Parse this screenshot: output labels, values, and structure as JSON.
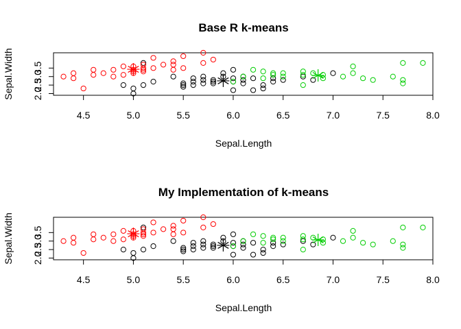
{
  "colors": {
    "cluster1": "#000000",
    "cluster2": "#ff0000",
    "cluster3": "#00cd00"
  },
  "chart_data": [
    {
      "type": "scatter",
      "title": "Base R k-means",
      "xlabel": "Sepal.Length",
      "ylabel": "Sepal.Width",
      "xlim": [
        4.2,
        8.0
      ],
      "ylim": [
        1.9,
        4.4
      ],
      "xticks": [
        "4.5",
        "5.0",
        "5.5",
        "6.0",
        "6.5",
        "7.0",
        "7.5",
        "8.0"
      ],
      "yticks": [
        "2.0",
        "2.5",
        "3.0",
        "3.5"
      ],
      "grid": false,
      "series": [
        {
          "color": "#000000",
          "x": [
            4.9,
            5.0,
            5.1,
            5.2,
            5.4,
            5.5,
            5.5,
            5.5,
            5.6,
            5.6,
            5.6,
            5.7,
            5.7,
            5.7,
            5.8,
            5.8,
            5.8,
            5.9,
            5.9,
            6.0,
            6.0,
            6.0,
            6.0,
            6.1,
            6.1,
            6.2,
            6.2,
            6.3,
            6.3,
            6.4,
            6.4,
            6.5,
            6.7,
            6.8,
            7.0,
            5.0,
            5.1,
            6.1
          ],
          "y": [
            2.5,
            2.0,
            2.5,
            2.7,
            3.0,
            2.4,
            2.5,
            2.6,
            2.5,
            2.7,
            2.9,
            2.6,
            2.8,
            3.0,
            2.6,
            2.7,
            2.8,
            3.0,
            3.2,
            2.2,
            2.7,
            2.9,
            3.4,
            2.8,
            3.0,
            2.2,
            2.9,
            2.3,
            2.5,
            2.7,
            2.9,
            2.8,
            3.0,
            2.8,
            3.2,
            2.3,
            3.8,
            2.6
          ]
        },
        {
          "color": "#ff0000",
          "x": [
            4.3,
            4.4,
            4.4,
            4.5,
            4.6,
            4.6,
            4.7,
            4.8,
            4.8,
            4.9,
            4.9,
            5.0,
            5.0,
            5.0,
            5.1,
            5.1,
            5.1,
            5.2,
            5.2,
            5.3,
            5.4,
            5.4,
            5.4,
            5.5,
            5.5,
            5.7,
            5.7,
            5.8,
            5.0,
            5.1
          ],
          "y": [
            3.0,
            2.9,
            3.2,
            2.3,
            3.1,
            3.4,
            3.2,
            3.0,
            3.4,
            3.1,
            3.6,
            3.2,
            3.4,
            3.6,
            3.3,
            3.5,
            3.7,
            3.5,
            4.1,
            3.7,
            3.4,
            3.7,
            3.9,
            3.5,
            4.2,
            3.8,
            4.4,
            4.0,
            3.3,
            3.4
          ]
        },
        {
          "color": "#00cd00",
          "x": [
            6.0,
            6.1,
            6.2,
            6.3,
            6.3,
            6.4,
            6.4,
            6.5,
            6.5,
            6.7,
            6.7,
            6.7,
            6.8,
            6.9,
            6.9,
            7.1,
            7.2,
            7.2,
            7.3,
            7.4,
            7.6,
            7.7,
            7.7,
            7.7,
            7.9
          ],
          "y": [
            2.7,
            3.0,
            3.4,
            3.3,
            2.9,
            3.1,
            3.2,
            3.0,
            3.2,
            2.5,
            3.1,
            3.3,
            3.2,
            3.1,
            2.9,
            3.0,
            3.6,
            3.2,
            2.9,
            2.8,
            3.0,
            2.6,
            2.8,
            3.8,
            3.8
          ]
        }
      ],
      "centers": [
        {
          "color": "#000000",
          "x": 5.9,
          "y": 2.75
        },
        {
          "color": "#ff0000",
          "x": 5.0,
          "y": 3.43
        },
        {
          "color": "#00cd00",
          "x": 6.85,
          "y": 3.07
        }
      ]
    },
    {
      "type": "scatter",
      "title": "My Implementation of k-means",
      "xlabel": "Sepal.Length",
      "ylabel": "Sepal.Width",
      "xlim": [
        4.2,
        8.0
      ],
      "ylim": [
        1.9,
        4.4
      ],
      "xticks": [
        "4.5",
        "5.0",
        "5.5",
        "6.0",
        "6.5",
        "7.0",
        "7.5",
        "8.0"
      ],
      "yticks": [
        "2.0",
        "2.5",
        "3.0",
        "3.5"
      ],
      "grid": false,
      "series": [
        {
          "color": "#000000",
          "x": [
            4.9,
            5.0,
            5.1,
            5.2,
            5.4,
            5.5,
            5.5,
            5.5,
            5.6,
            5.6,
            5.6,
            5.7,
            5.7,
            5.7,
            5.8,
            5.8,
            5.8,
            5.9,
            5.9,
            6.0,
            6.0,
            6.0,
            6.0,
            6.1,
            6.1,
            6.2,
            6.2,
            6.3,
            6.3,
            6.4,
            6.4,
            6.5,
            6.7,
            6.8,
            7.0,
            5.0,
            5.1,
            6.1
          ],
          "y": [
            2.5,
            2.0,
            2.5,
            2.7,
            3.0,
            2.4,
            2.5,
            2.6,
            2.5,
            2.7,
            2.9,
            2.6,
            2.8,
            3.0,
            2.6,
            2.7,
            2.8,
            3.0,
            3.2,
            2.2,
            2.7,
            2.9,
            3.4,
            2.8,
            3.0,
            2.2,
            2.9,
            2.3,
            2.5,
            2.7,
            2.9,
            2.8,
            3.0,
            2.8,
            3.2,
            2.3,
            3.8,
            2.6
          ]
        },
        {
          "color": "#ff0000",
          "x": [
            4.3,
            4.4,
            4.4,
            4.5,
            4.6,
            4.6,
            4.7,
            4.8,
            4.8,
            4.9,
            4.9,
            5.0,
            5.0,
            5.0,
            5.1,
            5.1,
            5.1,
            5.2,
            5.2,
            5.3,
            5.4,
            5.4,
            5.4,
            5.5,
            5.5,
            5.7,
            5.7,
            5.8,
            5.0,
            5.1
          ],
          "y": [
            3.0,
            2.9,
            3.2,
            2.3,
            3.1,
            3.4,
            3.2,
            3.0,
            3.4,
            3.1,
            3.6,
            3.2,
            3.4,
            3.6,
            3.3,
            3.5,
            3.7,
            3.5,
            4.1,
            3.7,
            3.4,
            3.7,
            3.9,
            3.5,
            4.2,
            3.8,
            4.4,
            4.0,
            3.3,
            3.4
          ]
        },
        {
          "color": "#00cd00",
          "x": [
            6.0,
            6.1,
            6.2,
            6.3,
            6.3,
            6.4,
            6.4,
            6.5,
            6.5,
            6.7,
            6.7,
            6.7,
            6.8,
            6.9,
            6.9,
            7.1,
            7.2,
            7.2,
            7.3,
            7.4,
            7.6,
            7.7,
            7.7,
            7.7,
            7.9
          ],
          "y": [
            2.7,
            3.0,
            3.4,
            3.3,
            2.9,
            3.1,
            3.2,
            3.0,
            3.2,
            2.5,
            3.1,
            3.3,
            3.2,
            3.1,
            2.9,
            3.0,
            3.6,
            3.2,
            2.9,
            2.8,
            3.0,
            2.6,
            2.8,
            3.8,
            3.8
          ]
        }
      ],
      "centers": [
        {
          "color": "#000000",
          "x": 5.9,
          "y": 2.75
        },
        {
          "color": "#ff0000",
          "x": 5.0,
          "y": 3.43
        },
        {
          "color": "#00cd00",
          "x": 6.85,
          "y": 3.07
        }
      ]
    }
  ]
}
